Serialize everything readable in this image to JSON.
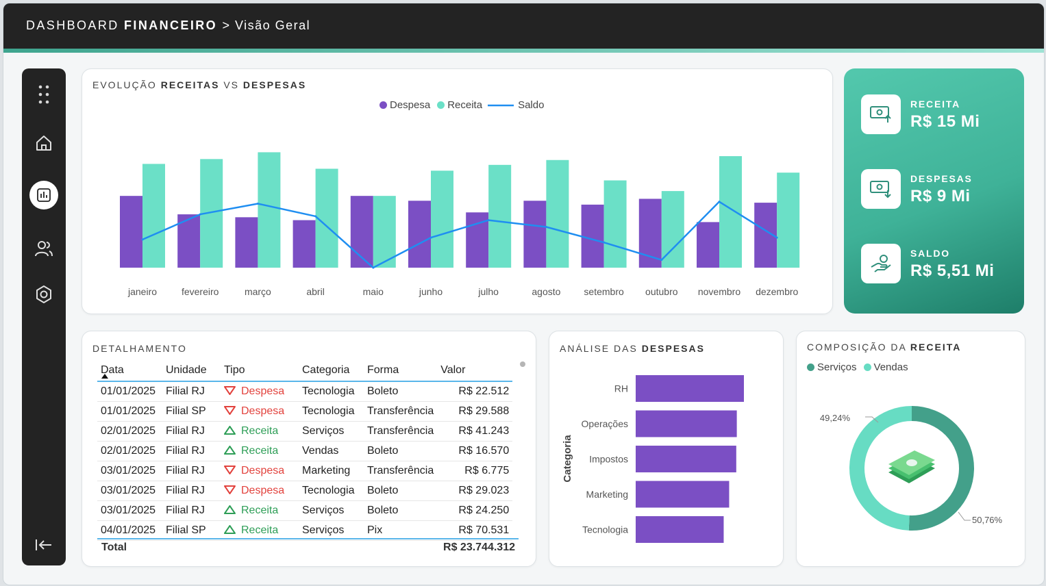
{
  "header": {
    "title_a": "DASHBOARD",
    "title_b": "FINANCEIRO",
    "title_c": "> Visão Geral"
  },
  "sidebar": {
    "icons": [
      "apps-icon",
      "home-icon",
      "chart-icon",
      "users-icon",
      "settings-icon",
      "collapse-icon"
    ],
    "active": "chart-icon"
  },
  "trend": {
    "title_a": "EVOLUÇÃO",
    "title_b": "RECEITAS",
    "title_c": "VS",
    "title_d": "DESPESAS",
    "legend": {
      "despesa": "Despesa",
      "receita": "Receita",
      "saldo": "Saldo"
    }
  },
  "colors": {
    "despesa": "#7b4fc4",
    "receita": "#6be0c7",
    "saldo": "#1f8ef1",
    "servicos": "#43a08a",
    "vendas": "#67dcc3"
  },
  "chart_data": [
    {
      "type": "bar",
      "title": "EVOLUÇÃO RECEITAS VS DESPESAS",
      "categories": [
        "janeiro",
        "fevereiro",
        "março",
        "abril",
        "maio",
        "junho",
        "julho",
        "agosto",
        "setembro",
        "outubro",
        "novembro",
        "dezembro"
      ],
      "series": [
        {
          "name": "Despesa",
          "type": "bar",
          "values": [
            0.74,
            0.55,
            0.52,
            0.49,
            0.74,
            0.69,
            0.57,
            0.69,
            0.65,
            0.71,
            0.47,
            0.67
          ]
        },
        {
          "name": "Receita",
          "type": "bar",
          "values": [
            1.07,
            1.12,
            1.19,
            1.02,
            0.74,
            1.0,
            1.06,
            1.11,
            0.9,
            0.79,
            1.15,
            0.98
          ]
        },
        {
          "name": "Saldo",
          "type": "line",
          "values": [
            0.29,
            0.55,
            0.66,
            0.53,
            0.0,
            0.31,
            0.49,
            0.42,
            0.26,
            0.08,
            0.68,
            0.31
          ]
        }
      ],
      "ylim": [
        0,
        1.3
      ]
    },
    {
      "type": "bar",
      "title": "ANÁLISE DAS DESPESAS",
      "ylabel": "Categoria",
      "categories": [
        "RH",
        "Operações",
        "Impostos",
        "Marketing",
        "Tecnologia"
      ],
      "values": [
        1.98,
        1.85,
        1.84,
        1.71,
        1.61
      ]
    },
    {
      "type": "pie",
      "title": "COMPOSIÇÃO DA RECEITA",
      "labels": [
        "Serviços",
        "Vendas"
      ],
      "values": [
        50.76,
        49.24
      ],
      "value_labels": [
        "50,76%",
        "49,24%"
      ]
    }
  ],
  "kpis": [
    {
      "label": "RECEITA",
      "value": "R$ 15 Mi",
      "icon": "cash-up-icon"
    },
    {
      "label": "DESPESAS",
      "value": "R$ 9 Mi",
      "icon": "cash-down-icon"
    },
    {
      "label": "SALDO",
      "value": "R$ 5,51 Mi",
      "icon": "hand-money-icon"
    }
  ],
  "detail": {
    "title": "DETALHAMENTO",
    "columns": [
      "Data",
      "Unidade",
      "Tipo",
      "Categoria",
      "Forma",
      "Valor"
    ],
    "rows": [
      [
        "01/01/2025",
        "Filial RJ",
        "Despesa",
        "Tecnologia",
        "Boleto",
        "R$ 22.512"
      ],
      [
        "01/01/2025",
        "Filial SP",
        "Despesa",
        "Tecnologia",
        "Transferência",
        "R$ 29.588"
      ],
      [
        "02/01/2025",
        "Filial RJ",
        "Receita",
        "Serviços",
        "Transferência",
        "R$ 41.243"
      ],
      [
        "02/01/2025",
        "Filial RJ",
        "Receita",
        "Vendas",
        "Boleto",
        "R$ 16.570"
      ],
      [
        "03/01/2025",
        "Filial RJ",
        "Despesa",
        "Marketing",
        "Transferência",
        "R$ 6.775"
      ],
      [
        "03/01/2025",
        "Filial RJ",
        "Despesa",
        "Tecnologia",
        "Boleto",
        "R$ 29.023"
      ],
      [
        "03/01/2025",
        "Filial RJ",
        "Receita",
        "Serviços",
        "Boleto",
        "R$ 24.250"
      ],
      [
        "04/01/2025",
        "Filial SP",
        "Receita",
        "Serviços",
        "Pix",
        "R$ 70.531"
      ]
    ],
    "total_label": "Total",
    "total_value": "R$ 23.744.312"
  },
  "expenses": {
    "title_a": "ANÁLISE DAS",
    "title_b": "DESPESAS"
  },
  "composition": {
    "title_a": "COMPOSIÇÃO DA",
    "title_b": "RECEITA",
    "legend": [
      "Serviços",
      "Vendas"
    ]
  }
}
